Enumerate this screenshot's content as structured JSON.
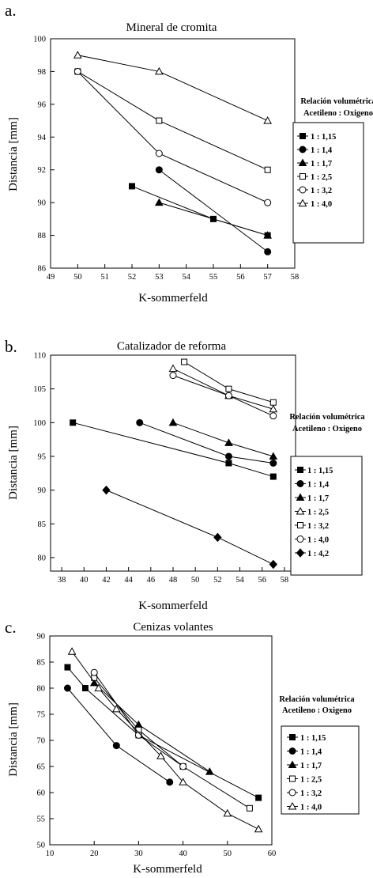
{
  "chart_data": [
    {
      "panel": "a.",
      "type": "scatter",
      "title": "Mineral de cromita",
      "xlabel": "K-sommerfeld",
      "ylabel": "Distancia [mm]",
      "xlim": [
        49,
        58
      ],
      "ylim": [
        86,
        100
      ],
      "xticks": [
        49,
        50,
        51,
        52,
        53,
        54,
        55,
        56,
        57,
        58
      ],
      "yticks": [
        86,
        88,
        90,
        92,
        94,
        96,
        98,
        100
      ],
      "legend_title": [
        "Relación volumétrica",
        "Acetileno : Oxigeno"
      ],
      "legend_placement": "right",
      "series": [
        {
          "name": "1 : 1,15",
          "marker": "square-filled",
          "x": [
            52,
            55,
            57
          ],
          "y": [
            91,
            89,
            88
          ]
        },
        {
          "name": "1 : 1,4",
          "marker": "circle-filled",
          "x": [
            53,
            57
          ],
          "y": [
            92,
            87
          ]
        },
        {
          "name": "1 : 1,7",
          "marker": "triangle-filled",
          "x": [
            53,
            57
          ],
          "y": [
            90,
            88
          ]
        },
        {
          "name": "1 : 2,5",
          "marker": "square-open",
          "x": [
            50,
            53,
            57
          ],
          "y": [
            98,
            95,
            92
          ]
        },
        {
          "name": "1 : 3,2",
          "marker": "circle-open",
          "x": [
            50,
            53,
            57
          ],
          "y": [
            98,
            93,
            90
          ]
        },
        {
          "name": "1 : 4,0",
          "marker": "triangle-open",
          "x": [
            50,
            53,
            57
          ],
          "y": [
            99,
            98,
            95
          ]
        }
      ]
    },
    {
      "panel": "b.",
      "type": "scatter",
      "title": "Catalizador de reforma",
      "xlabel": "K-sommerfeld",
      "ylabel": "Distancia [mm]",
      "xlim": [
        37,
        59
      ],
      "ylim": [
        78,
        110
      ],
      "xticks": [
        38,
        40,
        42,
        44,
        46,
        48,
        50,
        52,
        54,
        56,
        58
      ],
      "yticks": [
        80,
        85,
        90,
        95,
        100,
        105,
        110
      ],
      "legend_title": [
        "Relación volumétrica",
        "Acetileno : Oxigeno"
      ],
      "legend_placement": "right",
      "series": [
        {
          "name": "1 : 1,15",
          "marker": "square-filled",
          "x": [
            39,
            53,
            57
          ],
          "y": [
            100,
            94,
            92
          ]
        },
        {
          "name": "1 : 1,4",
          "marker": "circle-filled",
          "x": [
            45,
            53,
            57
          ],
          "y": [
            100,
            95,
            94
          ]
        },
        {
          "name": "1 : 1,7",
          "marker": "triangle-filled",
          "x": [
            48,
            53,
            57
          ],
          "y": [
            100,
            97,
            95
          ]
        },
        {
          "name": "1 : 2,5",
          "marker": "triangle-open",
          "x": [
            48,
            53,
            57
          ],
          "y": [
            108,
            104,
            102
          ]
        },
        {
          "name": "1 : 3,2",
          "marker": "square-open",
          "x": [
            49,
            53,
            57
          ],
          "y": [
            109,
            105,
            103
          ]
        },
        {
          "name": "1 : 4,0",
          "marker": "circle-open",
          "x": [
            48,
            53,
            57
          ],
          "y": [
            107,
            104,
            101
          ]
        },
        {
          "name": "1 : 4,2",
          "marker": "diamond-filled",
          "x": [
            42,
            52,
            57
          ],
          "y": [
            90,
            83,
            79
          ]
        }
      ]
    },
    {
      "panel": "c.",
      "type": "scatter",
      "title": "Cenizas volantes",
      "xlabel": "K-sommerfeld",
      "ylabel": "Distancia [mm]",
      "xlim": [
        10,
        60
      ],
      "ylim": [
        50,
        90
      ],
      "xticks": [
        10,
        20,
        30,
        40,
        50,
        60
      ],
      "yticks": [
        50,
        55,
        60,
        65,
        70,
        75,
        80,
        85,
        90
      ],
      "legend_title": [
        "Relación volumétrica",
        "Acetileno : Oxigeno"
      ],
      "legend_placement": "right",
      "series": [
        {
          "name": "1 : 1,15",
          "marker": "square-filled",
          "x": [
            14,
            18,
            30,
            57
          ],
          "y": [
            84,
            80,
            71,
            59
          ]
        },
        {
          "name": "1 : 1,4",
          "marker": "circle-filled",
          "x": [
            14,
            25,
            37
          ],
          "y": [
            80,
            69,
            62
          ]
        },
        {
          "name": "1 : 1,7",
          "marker": "triangle-filled",
          "x": [
            20,
            30,
            46
          ],
          "y": [
            81,
            73,
            64
          ]
        },
        {
          "name": "1 : 2,5",
          "marker": "square-open",
          "x": [
            20,
            30,
            40,
            55
          ],
          "y": [
            82,
            72,
            65,
            57
          ]
        },
        {
          "name": "1 : 3,2",
          "marker": "circle-open",
          "x": [
            20,
            30,
            40
          ],
          "y": [
            83,
            71,
            65
          ]
        },
        {
          "name": "1 : 4,0",
          "marker": "triangle-open",
          "x": [
            15,
            21,
            25,
            35,
            40,
            50,
            57
          ],
          "y": [
            87,
            80,
            76,
            67,
            62,
            56,
            53
          ]
        }
      ]
    }
  ]
}
